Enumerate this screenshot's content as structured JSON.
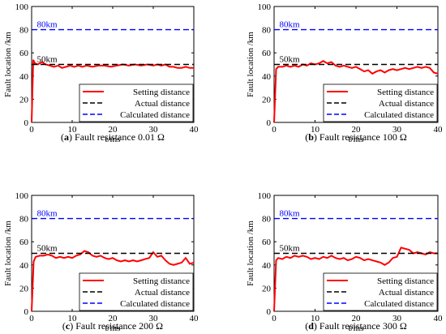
{
  "colors": {
    "setting": "#ff0000",
    "actual": "#000000",
    "calculated": "#0000ff",
    "axis": "#000000"
  },
  "chart_data": [
    {
      "type": "line",
      "caption_letter": "a",
      "caption_text": "Fault resistance 0.01 Ω",
      "xlabel": "t/ms",
      "ylabel": "Fault location /km",
      "xlim": [
        0,
        40
      ],
      "ylim": [
        0,
        100
      ],
      "xticks": [
        0,
        10,
        20,
        30,
        40
      ],
      "yticks": [
        0,
        20,
        40,
        60,
        80,
        100
      ],
      "legend_position": "lower-right",
      "annotations": [
        {
          "text": "80km",
          "x": 0.5,
          "y": 82,
          "color": "#0000ff"
        },
        {
          "text": "50km",
          "x": 0.5,
          "y": 52,
          "color": "#000000"
        }
      ],
      "series": [
        {
          "name": "Setting distance",
          "style": "solid",
          "color": "#ff0000",
          "points": [
            [
              0,
              0
            ],
            [
              0.4,
              54
            ],
            [
              0.8,
              51
            ],
            [
              1.5,
              50
            ],
            [
              2.5,
              52
            ],
            [
              3.5,
              50
            ],
            [
              4.5,
              49
            ],
            [
              5.5,
              48
            ],
            [
              6.5,
              49
            ],
            [
              7.5,
              47
            ],
            [
              8.5,
              48
            ],
            [
              9.5,
              49
            ],
            [
              10.5,
              48
            ],
            [
              11.5,
              49
            ],
            [
              12.5,
              48
            ],
            [
              13.5,
              49
            ],
            [
              15,
              48
            ],
            [
              16.5,
              49
            ],
            [
              18,
              49
            ],
            [
              19.5,
              48
            ],
            [
              21,
              49
            ],
            [
              22.5,
              50
            ],
            [
              24,
              49
            ],
            [
              25.5,
              50
            ],
            [
              27,
              49
            ],
            [
              28.5,
              50
            ],
            [
              30,
              49
            ],
            [
              31,
              50
            ],
            [
              32,
              49
            ],
            [
              33,
              50
            ],
            [
              34,
              48
            ],
            [
              35,
              48
            ],
            [
              36,
              47
            ],
            [
              37,
              47
            ],
            [
              38,
              48
            ],
            [
              39,
              47
            ],
            [
              40,
              47
            ]
          ]
        },
        {
          "name": "Actual distance",
          "style": "dashed",
          "color": "#000000",
          "points": [
            [
              0,
              50
            ],
            [
              40,
              50
            ]
          ]
        },
        {
          "name": "Calculated distance",
          "style": "dashed",
          "color": "#0000ff",
          "points": [
            [
              0,
              80
            ],
            [
              40,
              80
            ]
          ]
        }
      ]
    },
    {
      "type": "line",
      "caption_letter": "b",
      "caption_text": "Fault resistance 100 Ω",
      "xlabel": "t/ms",
      "ylabel": "Fault location /km",
      "xlim": [
        0,
        40
      ],
      "ylim": [
        0,
        100
      ],
      "xticks": [
        0,
        10,
        20,
        30,
        40
      ],
      "yticks": [
        0,
        20,
        40,
        60,
        80,
        100
      ],
      "legend_position": "lower-right",
      "annotations": [
        {
          "text": "80km",
          "x": 0.5,
          "y": 82,
          "color": "#0000ff"
        },
        {
          "text": "50km",
          "x": 0.5,
          "y": 52,
          "color": "#000000"
        }
      ],
      "series": [
        {
          "name": "Setting distance",
          "style": "solid",
          "color": "#ff0000",
          "points": [
            [
              0,
              0
            ],
            [
              0.5,
              46
            ],
            [
              1,
              48
            ],
            [
              2,
              48
            ],
            [
              3,
              49
            ],
            [
              4,
              48
            ],
            [
              5,
              49
            ],
            [
              6,
              48
            ],
            [
              7,
              50
            ],
            [
              8,
              49
            ],
            [
              9,
              51
            ],
            [
              10,
              50
            ],
            [
              11,
              51
            ],
            [
              12,
              53
            ],
            [
              13,
              51
            ],
            [
              14,
              52
            ],
            [
              15,
              49
            ],
            [
              16,
              48
            ],
            [
              17,
              49
            ],
            [
              18,
              48
            ],
            [
              19,
              47
            ],
            [
              20,
              48
            ],
            [
              21,
              46
            ],
            [
              22,
              44
            ],
            [
              23,
              45
            ],
            [
              24,
              42
            ],
            [
              25,
              44
            ],
            [
              26,
              45
            ],
            [
              27,
              43
            ],
            [
              28,
              45
            ],
            [
              29,
              46
            ],
            [
              30,
              45
            ],
            [
              31,
              46
            ],
            [
              32,
              47
            ],
            [
              33,
              46
            ],
            [
              34,
              47
            ],
            [
              35,
              48
            ],
            [
              36,
              47
            ],
            [
              37,
              48
            ],
            [
              38,
              47
            ],
            [
              39,
              43
            ],
            [
              40,
              42
            ]
          ]
        },
        {
          "name": "Actual distance",
          "style": "dashed",
          "color": "#000000",
          "points": [
            [
              0,
              50
            ],
            [
              40,
              50
            ]
          ]
        },
        {
          "name": "Calculated distance",
          "style": "dashed",
          "color": "#0000ff",
          "points": [
            [
              0,
              80
            ],
            [
              40,
              80
            ]
          ]
        }
      ]
    },
    {
      "type": "line",
      "caption_letter": "c",
      "caption_text": "Fault resistance 200 Ω",
      "xlabel": "t/ms",
      "ylabel": "Fault location /km",
      "xlim": [
        0,
        40
      ],
      "ylim": [
        0,
        100
      ],
      "xticks": [
        0,
        10,
        20,
        30,
        40
      ],
      "yticks": [
        0,
        20,
        40,
        60,
        80,
        100
      ],
      "legend_position": "lower-right",
      "annotations": [
        {
          "text": "80km",
          "x": 0.5,
          "y": 82,
          "color": "#0000ff"
        },
        {
          "text": "50km",
          "x": 0.5,
          "y": 52,
          "color": "#000000"
        }
      ],
      "series": [
        {
          "name": "Setting distance",
          "style": "solid",
          "color": "#ff0000",
          "points": [
            [
              0,
              0
            ],
            [
              0.5,
              43
            ],
            [
              1,
              47
            ],
            [
              2,
              48
            ],
            [
              3,
              48
            ],
            [
              4,
              49
            ],
            [
              5,
              48
            ],
            [
              6,
              46
            ],
            [
              7,
              47
            ],
            [
              8,
              46
            ],
            [
              9,
              47
            ],
            [
              10,
              46
            ],
            [
              11,
              48
            ],
            [
              12,
              49
            ],
            [
              13,
              52
            ],
            [
              14,
              51
            ],
            [
              15,
              48
            ],
            [
              16,
              47
            ],
            [
              17,
              48
            ],
            [
              18,
              46
            ],
            [
              19,
              45
            ],
            [
              20,
              46
            ],
            [
              21,
              44
            ],
            [
              22,
              43
            ],
            [
              23,
              44
            ],
            [
              24,
              43
            ],
            [
              25,
              44
            ],
            [
              26,
              43
            ],
            [
              27,
              44
            ],
            [
              28,
              45
            ],
            [
              29,
              46
            ],
            [
              30,
              51
            ],
            [
              31,
              47
            ],
            [
              32,
              48
            ],
            [
              33,
              44
            ],
            [
              34,
              41
            ],
            [
              35,
              40
            ],
            [
              36,
              41
            ],
            [
              37,
              42
            ],
            [
              38,
              46
            ],
            [
              39,
              41
            ],
            [
              40,
              42
            ]
          ]
        },
        {
          "name": "Actual distance",
          "style": "dashed",
          "color": "#000000",
          "points": [
            [
              0,
              50
            ],
            [
              40,
              50
            ]
          ]
        },
        {
          "name": "Calculated distance",
          "style": "dashed",
          "color": "#0000ff",
          "points": [
            [
              0,
              80
            ],
            [
              40,
              80
            ]
          ]
        }
      ]
    },
    {
      "type": "line",
      "caption_letter": "d",
      "caption_text": "Fault resistance 300 Ω",
      "xlabel": "t/ms",
      "ylabel": "Fault location /km",
      "xlim": [
        0,
        40
      ],
      "ylim": [
        0,
        100
      ],
      "xticks": [
        0,
        10,
        20,
        30,
        40
      ],
      "yticks": [
        0,
        20,
        40,
        60,
        80,
        100
      ],
      "legend_position": "lower-right",
      "annotations": [
        {
          "text": "80km",
          "x": 0.5,
          "y": 82,
          "color": "#0000ff"
        },
        {
          "text": "50km",
          "x": 0.5,
          "y": 52,
          "color": "#000000"
        }
      ],
      "series": [
        {
          "name": "Setting distance",
          "style": "solid",
          "color": "#ff0000",
          "points": [
            [
              0,
              0
            ],
            [
              0.5,
              44
            ],
            [
              1,
              46
            ],
            [
              2,
              45
            ],
            [
              3,
              47
            ],
            [
              4,
              46
            ],
            [
              5,
              48
            ],
            [
              6,
              47
            ],
            [
              7,
              48
            ],
            [
              8,
              47
            ],
            [
              9,
              45
            ],
            [
              10,
              46
            ],
            [
              11,
              45
            ],
            [
              12,
              47
            ],
            [
              13,
              46
            ],
            [
              14,
              48
            ],
            [
              15,
              46
            ],
            [
              16,
              45
            ],
            [
              17,
              46
            ],
            [
              18,
              44
            ],
            [
              19,
              45
            ],
            [
              20,
              47
            ],
            [
              21,
              46
            ],
            [
              22,
              44
            ],
            [
              23,
              45
            ],
            [
              24,
              44
            ],
            [
              25,
              43
            ],
            [
              26,
              42
            ],
            [
              27,
              40
            ],
            [
              28,
              42
            ],
            [
              29,
              46
            ],
            [
              30,
              47
            ],
            [
              31,
              55
            ],
            [
              32,
              54
            ],
            [
              33,
              53
            ],
            [
              34,
              50
            ],
            [
              35,
              51
            ],
            [
              36,
              50
            ],
            [
              37,
              49
            ],
            [
              38,
              51
            ],
            [
              39,
              50
            ],
            [
              40,
              50
            ]
          ]
        },
        {
          "name": "Actual distance",
          "style": "dashed",
          "color": "#000000",
          "points": [
            [
              0,
              50
            ],
            [
              40,
              50
            ]
          ]
        },
        {
          "name": "Calculated distance",
          "style": "dashed",
          "color": "#0000ff",
          "points": [
            [
              0,
              80
            ],
            [
              40,
              80
            ]
          ]
        }
      ]
    }
  ]
}
